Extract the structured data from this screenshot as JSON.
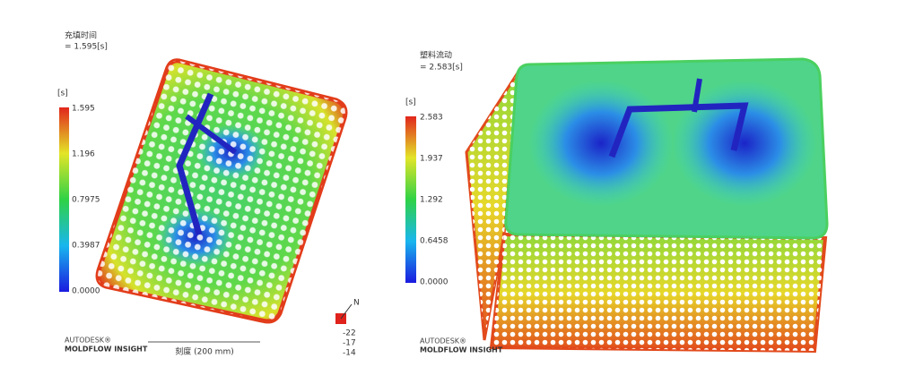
{
  "left": {
    "title": "充填时间",
    "value": "= 1.595[s]",
    "unit": "[s]",
    "legend": [
      "1.595",
      "1.196",
      "0.7975",
      "0.3987",
      "0.0000"
    ],
    "brand": "AUTODESK®",
    "product": "MOLDFLOW INSIGHT",
    "scale": "刻度 (200 mm)",
    "axis_label": "N",
    "angles": [
      "-22",
      "-17",
      "-14"
    ]
  },
  "right": {
    "title": "塑料流动",
    "value": "= 2.583[s]",
    "unit": "[s]",
    "legend": [
      "2.583",
      "1.937",
      "1.292",
      "0.6458",
      "0.0000"
    ],
    "brand": "AUTODESK®",
    "product": "MOLDFLOW INSIGHT"
  }
}
